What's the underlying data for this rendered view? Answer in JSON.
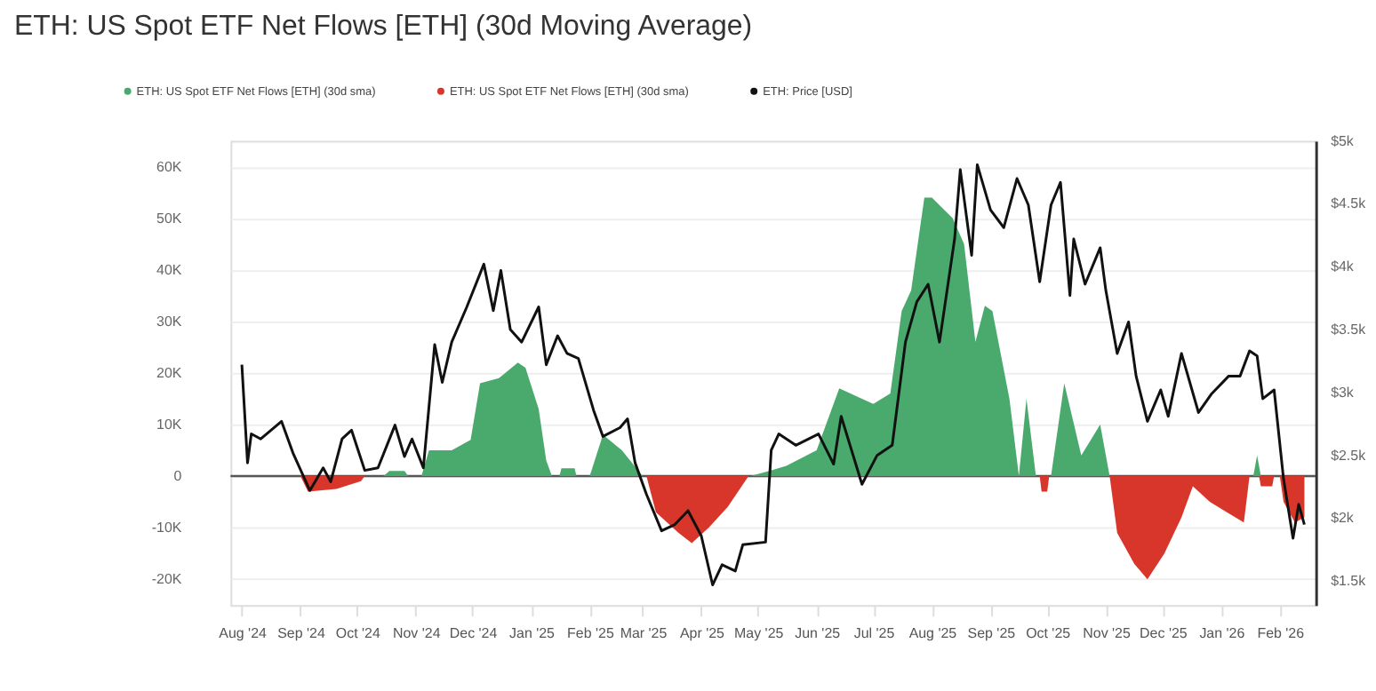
{
  "chart_data": {
    "type": "area",
    "title": "ETH: US Spot ETF Net Flows [ETH] (30d Moving Average)",
    "legend": "top left",
    "grid": "y",
    "xlim": [
      "2024-07-26",
      "2026-02-20"
    ],
    "xticks": [
      {
        "value": "2024-08-01",
        "label": "Aug '24"
      },
      {
        "value": "2024-09-01",
        "label": "Sep '24"
      },
      {
        "value": "2024-10-01",
        "label": "Oct '24"
      },
      {
        "value": "2024-11-01",
        "label": "Nov '24"
      },
      {
        "value": "2024-12-01",
        "label": "Dec '24"
      },
      {
        "value": "2025-01-01",
        "label": "Jan '25"
      },
      {
        "value": "2025-02-01",
        "label": "Feb '25"
      },
      {
        "value": "2025-03-01",
        "label": "Mar '25"
      },
      {
        "value": "2025-04-01",
        "label": "Apr '25"
      },
      {
        "value": "2025-05-01",
        "label": "May '25"
      },
      {
        "value": "2025-06-01",
        "label": "Jun '25"
      },
      {
        "value": "2025-07-01",
        "label": "Jul '25"
      },
      {
        "value": "2025-08-01",
        "label": "Aug '25"
      },
      {
        "value": "2025-09-01",
        "label": "Sep '25"
      },
      {
        "value": "2025-10-01",
        "label": "Oct '25"
      },
      {
        "value": "2025-11-01",
        "label": "Nov '25"
      },
      {
        "value": "2025-12-01",
        "label": "Dec '25"
      },
      {
        "value": "2026-01-01",
        "label": "Jan '26"
      },
      {
        "value": "2026-02-01",
        "label": "Feb '26"
      }
    ],
    "ylim": [
      -25000,
      65000
    ],
    "yticks": [
      {
        "value": -20000,
        "label": "-20K"
      },
      {
        "value": -10000,
        "label": "-10K"
      },
      {
        "value": 0,
        "label": "0"
      },
      {
        "value": 10000,
        "label": "10K"
      },
      {
        "value": 20000,
        "label": "20K"
      },
      {
        "value": 30000,
        "label": "30K"
      },
      {
        "value": 40000,
        "label": "40K"
      },
      {
        "value": 50000,
        "label": "50K"
      },
      {
        "value": 60000,
        "label": "60K"
      }
    ],
    "y2lim": [
      1310,
      5000
    ],
    "y2ticks": [
      {
        "value": 1500,
        "label": "$1.5k"
      },
      {
        "value": 2000,
        "label": "$2k"
      },
      {
        "value": 2500,
        "label": "$2.5k"
      },
      {
        "value": 3000,
        "label": "$3k"
      },
      {
        "value": 3500,
        "label": "$3.5k"
      },
      {
        "value": 4000,
        "label": "$4k"
      },
      {
        "value": 4500,
        "label": "$4.5k"
      },
      {
        "value": 5000,
        "label": "$5k"
      }
    ],
    "ref_lines": [
      {
        "axis": "y",
        "value": 0,
        "color": "#555555"
      }
    ],
    "series": [
      {
        "name": "ETH: US Spot ETF Net Flows [ETH] (30d sma)",
        "color": "#4aa96c",
        "x": [
          "2024-10-15",
          "2024-10-18",
          "2024-10-26",
          "2024-10-28",
          "2024-10-30",
          "2024-11-04",
          "2024-11-08",
          "2024-11-20",
          "2024-11-30",
          "2024-12-05",
          "2024-12-15",
          "2024-12-25",
          "2024-12-29",
          "2025-01-05",
          "2025-01-09",
          "2025-01-12",
          "2025-01-15",
          "2025-01-16",
          "2025-01-17",
          "2025-01-24",
          "2025-01-25",
          "2025-01-28",
          "2025-02-01",
          "2025-02-08",
          "2025-02-18",
          "2025-03-01",
          "2025-03-05",
          "2025-04-27",
          "2025-05-07",
          "2025-05-16",
          "2025-06-01",
          "2025-06-13",
          "2025-06-25",
          "2025-07-01",
          "2025-07-10",
          "2025-07-16",
          "2025-07-21",
          "2025-07-28",
          "2025-08-01",
          "2025-08-12",
          "2025-08-18",
          "2025-08-24",
          "2025-08-29",
          "2025-09-02",
          "2025-09-11",
          "2025-09-16",
          "2025-09-20",
          "2025-09-25",
          "2025-09-28",
          "2025-10-03",
          "2025-10-10",
          "2025-10-19",
          "2025-10-29",
          "2025-11-03",
          "2025-11-10",
          "2026-01-18",
          "2026-01-20",
          "2026-01-22"
        ],
        "values": [
          0,
          1000,
          1000,
          0,
          null,
          0,
          5000,
          5000,
          7000,
          18000,
          19000,
          22000,
          21000,
          13000,
          3000,
          0,
          null,
          0,
          1500,
          1500,
          0,
          null,
          0,
          8000,
          5000,
          0,
          null,
          0,
          1000,
          2000,
          5000,
          17000,
          15000,
          14000,
          16000,
          32000,
          36000,
          54000,
          54000,
          50000,
          45000,
          26000,
          33000,
          32000,
          15000,
          0,
          15000,
          0,
          null,
          0,
          18000,
          4000,
          10000,
          0,
          null,
          0,
          4000,
          0
        ]
      },
      {
        "name": "ETH: US Spot ETF Net Flows [ETH] (30d sma)",
        "color": "#d9362b",
        "x": [
          "2024-09-01",
          "2024-09-05",
          "2024-09-20",
          "2024-10-03",
          "2024-10-05",
          "2024-10-10",
          "2025-03-03",
          "2025-03-08",
          "2025-03-20",
          "2025-03-27",
          "2025-04-05",
          "2025-04-15",
          "2025-04-26",
          "2025-05-01",
          "2025-09-27",
          "2025-09-28",
          "2025-10-01",
          "2025-10-02",
          "2025-10-10",
          "2025-11-03",
          "2025-11-07",
          "2025-11-16",
          "2025-11-23",
          "2025-12-02",
          "2025-12-11",
          "2025-12-17",
          "2025-12-26",
          "2026-01-04",
          "2026-01-13",
          "2026-01-16",
          "2026-01-19",
          "2026-01-21",
          "2026-01-22",
          "2026-01-28",
          "2026-01-29",
          "2026-01-30",
          "2026-02-01",
          "2026-02-03",
          "2026-02-09",
          "2026-02-14"
        ],
        "values": [
          0,
          -3000,
          -2500,
          -1000,
          0,
          null,
          0,
          -7000,
          -11000,
          -13000,
          -10000,
          -6000,
          0,
          null,
          0,
          -3000,
          -3000,
          0,
          null,
          0,
          -11000,
          -17000,
          -20000,
          -15000,
          -8000,
          -2000,
          -5000,
          -7000,
          -9000,
          0,
          null,
          0,
          -2000,
          -2000,
          0,
          null,
          0,
          -5000,
          -9000,
          -8000
        ]
      },
      {
        "name": "ETH: Price [USD]",
        "type": "line",
        "axis": "y2",
        "color": "#111111",
        "x": [
          "2024-08-01",
          "2024-08-04",
          "2024-08-06",
          "2024-08-11",
          "2024-08-22",
          "2024-08-28",
          "2024-09-06",
          "2024-09-13",
          "2024-09-17",
          "2024-09-23",
          "2024-09-28",
          "2024-10-05",
          "2024-10-12",
          "2024-10-21",
          "2024-10-26",
          "2024-10-30",
          "2024-11-05",
          "2024-11-11",
          "2024-11-15",
          "2024-11-20",
          "2024-11-28",
          "2024-12-07",
          "2024-12-12",
          "2024-12-16",
          "2024-12-21",
          "2024-12-27",
          "2025-01-05",
          "2025-01-09",
          "2025-01-15",
          "2025-01-20",
          "2025-01-26",
          "2025-02-03",
          "2025-02-08",
          "2025-02-17",
          "2025-02-21",
          "2025-02-25",
          "2025-03-03",
          "2025-03-11",
          "2025-03-18",
          "2025-03-25",
          "2025-04-01",
          "2025-04-07",
          "2025-04-12",
          "2025-04-19",
          "2025-04-23",
          "2025-05-05",
          "2025-05-08",
          "2025-05-12",
          "2025-05-21",
          "2025-06-02",
          "2025-06-10",
          "2025-06-14",
          "2025-06-25",
          "2025-07-03",
          "2025-07-11",
          "2025-07-18",
          "2025-07-24",
          "2025-07-30",
          "2025-08-05",
          "2025-08-13",
          "2025-08-16",
          "2025-08-22",
          "2025-08-25",
          "2025-09-01",
          "2025-09-08",
          "2025-09-15",
          "2025-09-21",
          "2025-09-27",
          "2025-10-03",
          "2025-10-08",
          "2025-10-13",
          "2025-10-15",
          "2025-10-21",
          "2025-10-29",
          "2025-11-01",
          "2025-11-07",
          "2025-11-13",
          "2025-11-17",
          "2025-11-23",
          "2025-11-30",
          "2025-12-04",
          "2025-12-11",
          "2025-12-20",
          "2025-12-27",
          "2026-01-05",
          "2026-01-11",
          "2026-01-16",
          "2026-01-20",
          "2026-01-23",
          "2026-01-29",
          "2026-02-03",
          "2026-02-08",
          "2026-02-11",
          "2026-02-14"
        ],
        "values": [
          3220,
          2440,
          2670,
          2630,
          2770,
          2520,
          2220,
          2400,
          2290,
          2630,
          2700,
          2380,
          2400,
          2740,
          2490,
          2630,
          2400,
          3380,
          3080,
          3400,
          3680,
          4020,
          3650,
          3970,
          3500,
          3400,
          3680,
          3220,
          3450,
          3310,
          3270,
          2860,
          2650,
          2720,
          2790,
          2440,
          2190,
          1900,
          1950,
          2060,
          1860,
          1470,
          1630,
          1580,
          1790,
          1810,
          2540,
          2670,
          2580,
          2670,
          2430,
          2810,
          2270,
          2500,
          2580,
          3400,
          3720,
          3860,
          3400,
          4220,
          4770,
          4090,
          4810,
          4450,
          4310,
          4700,
          4490,
          3880,
          4490,
          4670,
          3770,
          4220,
          3860,
          4150,
          3810,
          3310,
          3560,
          3130,
          2770,
          3020,
          2810,
          3310,
          2840,
          2990,
          3130,
          3130,
          3330,
          3290,
          2950,
          3020,
          2310,
          1840,
          2110,
          1950
        ]
      }
    ]
  }
}
